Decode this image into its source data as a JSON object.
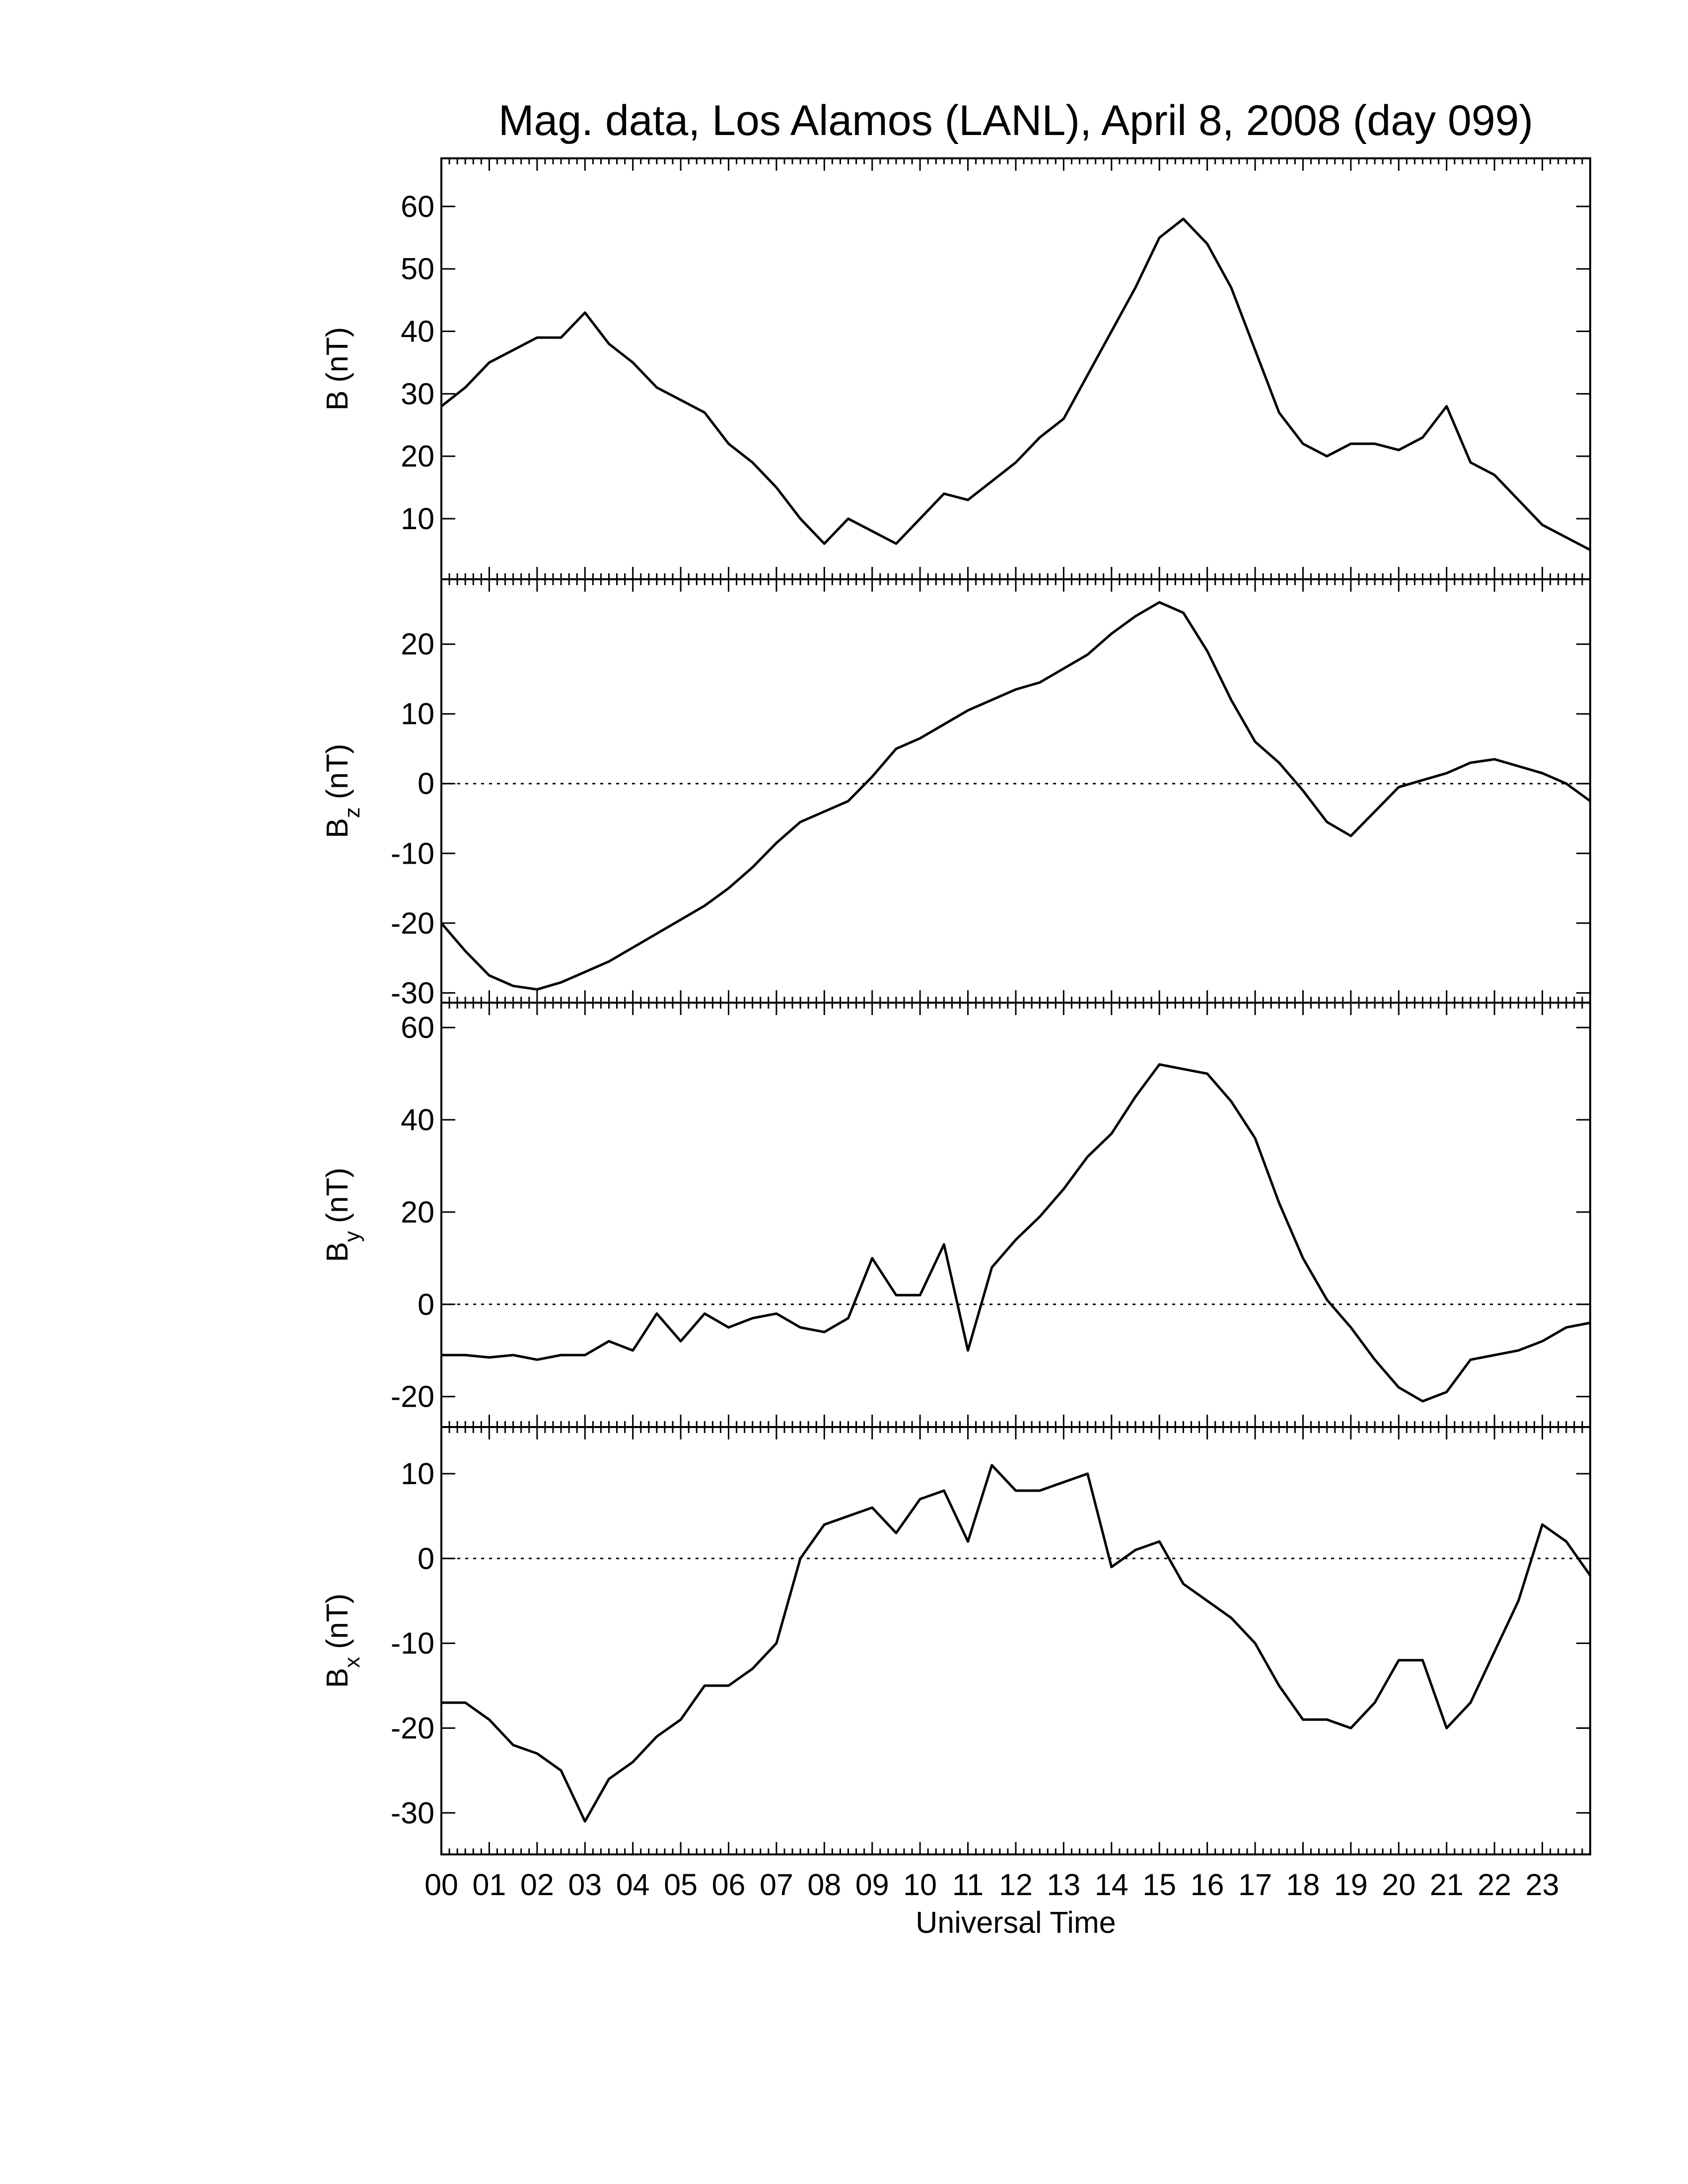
{
  "title": "Mag. data, Los Alamos (LANL), April 8, 2008 (day 099)",
  "chart_data": [
    {
      "type": "line",
      "ylabel_base": "B",
      "ylabel_unit": "(nT)",
      "color": "#000000",
      "xlim": [
        0,
        24
      ],
      "ylim": [
        0.3,
        67.7
      ],
      "yticks": [
        10,
        20,
        30,
        40,
        50,
        60
      ],
      "x": [
        0,
        0.5,
        1,
        1.5,
        2,
        2.5,
        3,
        3.5,
        4,
        4.5,
        5,
        5.5,
        6,
        6.5,
        7,
        7.5,
        8,
        8.5,
        9,
        9.5,
        10,
        10.5,
        11,
        11.5,
        12,
        12.5,
        13,
        13.5,
        14,
        14.5,
        15,
        15.5,
        16,
        16.5,
        17,
        17.5,
        18,
        18.5,
        19,
        19.5,
        20,
        20.5,
        21,
        21.5,
        22,
        22.5,
        23,
        23.5,
        24
      ],
      "values": [
        28,
        31,
        35,
        37,
        39,
        39,
        43,
        38,
        35,
        31,
        29,
        27,
        22,
        19,
        15,
        10,
        6,
        10,
        8,
        6,
        10,
        14,
        13,
        16,
        19,
        23,
        26,
        33,
        40,
        47,
        55,
        58,
        54,
        47,
        37,
        27,
        22,
        20,
        22,
        22,
        21,
        23,
        28,
        19,
        17,
        13,
        9,
        7,
        5
      ]
    },
    {
      "type": "line",
      "ylabel_base": "B",
      "ylabel_sub": "z",
      "ylabel_unit": "(nT)",
      "color": "#000000",
      "zero_line": true,
      "xlim": [
        0,
        24
      ],
      "ylim": [
        -31.4,
        29.3
      ],
      "yticks": [
        -30,
        -20,
        -10,
        0,
        10,
        20
      ],
      "x": [
        0,
        0.5,
        1,
        1.5,
        2,
        2.5,
        3,
        3.5,
        4,
        4.5,
        5,
        5.5,
        6,
        6.5,
        7,
        7.5,
        8,
        8.5,
        9,
        9.5,
        10,
        10.5,
        11,
        11.5,
        12,
        12.5,
        13,
        13.5,
        14,
        14.5,
        15,
        15.5,
        16,
        16.5,
        17,
        17.5,
        18,
        18.5,
        19,
        19.5,
        20,
        20.5,
        21,
        21.5,
        22,
        22.5,
        23,
        23.5,
        24
      ],
      "values": [
        -20,
        -24,
        -27.5,
        -29,
        -29.5,
        -28.5,
        -27,
        -25.5,
        -23.5,
        -21.5,
        -19.5,
        -17.5,
        -15,
        -12,
        -8.5,
        -5.5,
        -4,
        -2.5,
        1,
        5,
        6.5,
        8.5,
        10.5,
        12,
        13.5,
        14.5,
        16.5,
        18.5,
        21.5,
        24,
        26,
        24.5,
        19,
        12,
        6,
        3,
        -1,
        -5.5,
        -7.5,
        -4,
        -0.5,
        0.5,
        1.5,
        3,
        3.5,
        2.5,
        1.5,
        0,
        -2.5
      ]
    },
    {
      "type": "line",
      "ylabel_base": "B",
      "ylabel_sub": "y",
      "ylabel_unit": "(nT)",
      "color": "#000000",
      "zero_line": true,
      "xlim": [
        0,
        24
      ],
      "ylim": [
        -26.6,
        65.4
      ],
      "yticks": [
        -20,
        0,
        20,
        40,
        60
      ],
      "x": [
        0,
        0.5,
        1,
        1.5,
        2,
        2.5,
        3,
        3.5,
        4,
        4.5,
        5,
        5.5,
        6,
        6.5,
        7,
        7.5,
        8,
        8.5,
        9,
        9.5,
        10,
        10.5,
        11,
        11.5,
        12,
        12.5,
        13,
        13.5,
        14,
        14.5,
        15,
        15.5,
        16,
        16.5,
        17,
        17.5,
        18,
        18.5,
        19,
        19.5,
        20,
        20.5,
        21,
        21.5,
        22,
        22.5,
        23,
        23.5,
        24
      ],
      "values": [
        -11,
        -11,
        -11.5,
        -11,
        -12,
        -11,
        -11,
        -8,
        -10,
        -2,
        -8,
        -2,
        -5,
        -3,
        -2,
        -5,
        -6,
        -3,
        10,
        2,
        2,
        13,
        -10,
        8,
        14,
        19,
        25,
        32,
        37,
        45,
        52,
        51,
        50,
        44,
        36,
        22,
        10,
        1,
        -5,
        -12,
        -18,
        -21,
        -19,
        -12,
        -11,
        -10,
        -8,
        -5,
        -4
      ]
    },
    {
      "type": "line",
      "ylabel_base": "B",
      "ylabel_sub": "x",
      "ylabel_unit": "(nT)",
      "color": "#000000",
      "zero_line": true,
      "xlabel": "Universal Time",
      "xlim": [
        0,
        24
      ],
      "ylim": [
        -34.9,
        15.5
      ],
      "yticks": [
        -30,
        -20,
        -10,
        0,
        10
      ],
      "xticks": [
        {
          "value": 0,
          "label": "00"
        },
        {
          "value": 1,
          "label": "01"
        },
        {
          "value": 2,
          "label": "02"
        },
        {
          "value": 3,
          "label": "03"
        },
        {
          "value": 4,
          "label": "04"
        },
        {
          "value": 5,
          "label": "05"
        },
        {
          "value": 6,
          "label": "06"
        },
        {
          "value": 7,
          "label": "07"
        },
        {
          "value": 8,
          "label": "08"
        },
        {
          "value": 9,
          "label": "09"
        },
        {
          "value": 10,
          "label": "10"
        },
        {
          "value": 11,
          "label": "11"
        },
        {
          "value": 12,
          "label": "12"
        },
        {
          "value": 13,
          "label": "13"
        },
        {
          "value": 14,
          "label": "14"
        },
        {
          "value": 15,
          "label": "15"
        },
        {
          "value": 16,
          "label": "16"
        },
        {
          "value": 17,
          "label": "17"
        },
        {
          "value": 18,
          "label": "18"
        },
        {
          "value": 19,
          "label": "19"
        },
        {
          "value": 20,
          "label": "20"
        },
        {
          "value": 21,
          "label": "21"
        },
        {
          "value": 22,
          "label": "22"
        },
        {
          "value": 23,
          "label": "23"
        }
      ],
      "x": [
        0,
        0.5,
        1,
        1.5,
        2,
        2.5,
        3,
        3.5,
        4,
        4.5,
        5,
        5.5,
        6,
        6.5,
        7,
        7.5,
        8,
        8.5,
        9,
        9.5,
        10,
        10.5,
        11,
        11.5,
        12,
        12.5,
        13,
        13.5,
        14,
        14.5,
        15,
        15.5,
        16,
        16.5,
        17,
        17.5,
        18,
        18.5,
        19,
        19.5,
        20,
        20.5,
        21,
        21.5,
        22,
        22.5,
        23,
        23.5,
        24
      ],
      "values": [
        -17,
        -17,
        -19,
        -22,
        -23,
        -25,
        -31,
        -26,
        -24,
        -21,
        -19,
        -15,
        -15,
        -13,
        -10,
        0,
        4,
        5,
        6,
        3,
        7,
        8,
        2,
        11,
        8,
        8,
        9,
        10,
        -1,
        1,
        2,
        -3,
        -5,
        -7,
        -10,
        -15,
        -19,
        -19,
        -20,
        -17,
        -12,
        -12,
        -20,
        -17,
        -11,
        -5,
        4,
        2,
        -2
      ]
    }
  ]
}
